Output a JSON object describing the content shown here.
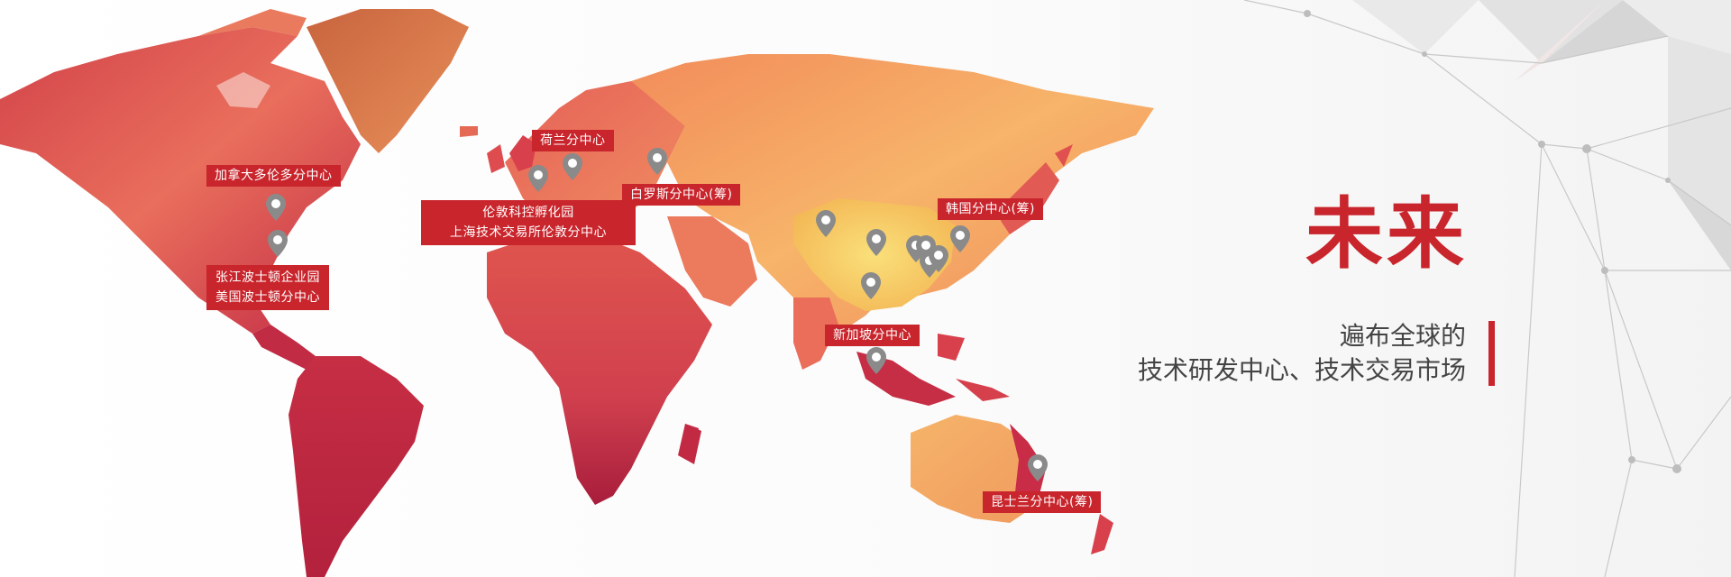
{
  "heading": {
    "title": "未来",
    "subtitle_line1": "遍布全球的",
    "subtitle_line2": "技术研发中心、技术交易市场"
  },
  "colors": {
    "accent": "#c9252c",
    "map_dark": "#b8223a",
    "map_mid": "#e0554e",
    "map_light": "#f5a060",
    "map_yellow": "#f6d364",
    "pin_gray": "#8a8a8a"
  },
  "locations": [
    {
      "id": "canada",
      "label": "加拿大多伦多分中心"
    },
    {
      "id": "boston",
      "label_line1": "张江波士顿企业园",
      "label_line2": "美国波士顿分中心"
    },
    {
      "id": "london",
      "label_line1": "伦敦科控孵化园",
      "label_line2": "上海技术交易所伦敦分中心"
    },
    {
      "id": "netherlands",
      "label": "荷兰分中心"
    },
    {
      "id": "belarus",
      "label": "白罗斯分中心(筹)"
    },
    {
      "id": "korea",
      "label": "韩国分中心(筹)"
    },
    {
      "id": "singapore",
      "label": "新加坡分中心"
    },
    {
      "id": "queensland",
      "label": "昆士兰分中心(筹)"
    }
  ]
}
